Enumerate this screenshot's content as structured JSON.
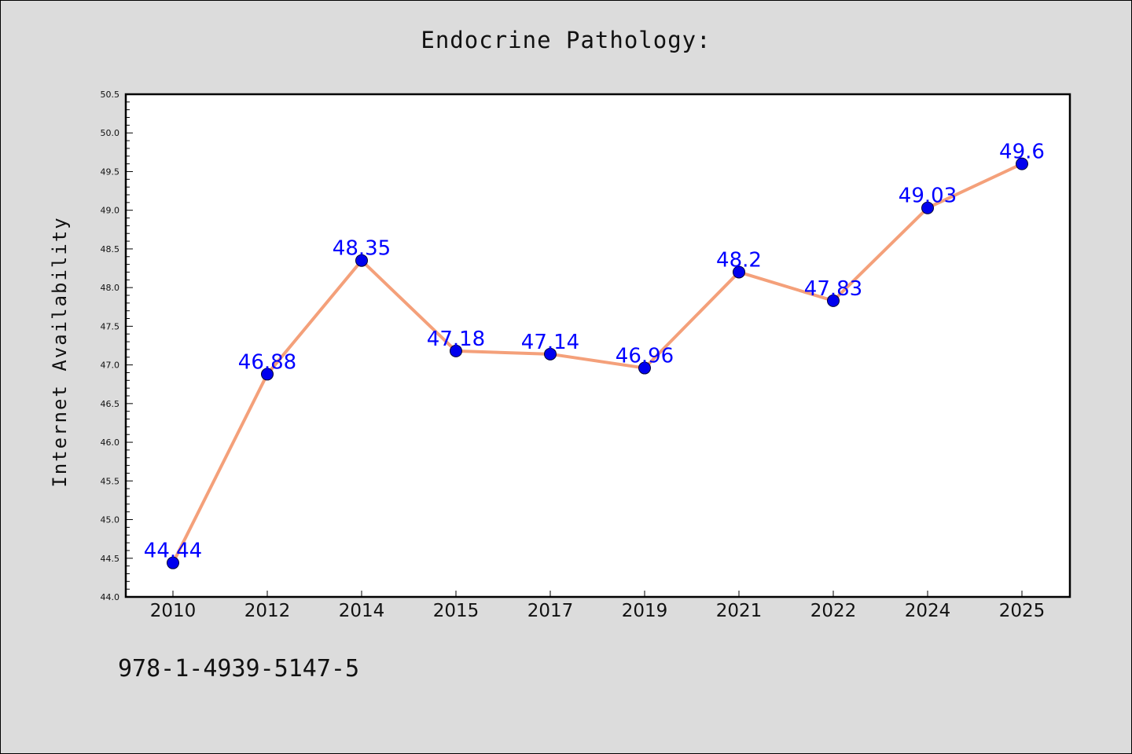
{
  "chart_data": {
    "type": "line",
    "title": "Endocrine Pathology:",
    "xlabel": "",
    "ylabel": "Internet Availability",
    "categories": [
      "2010",
      "2012",
      "2014",
      "2015",
      "2017",
      "2019",
      "2021",
      "2022",
      "2024",
      "2025"
    ],
    "series": [
      {
        "values": [
          44.44,
          46.88,
          48.35,
          47.18,
          47.14,
          46.96,
          48.2,
          47.83,
          49.03,
          49.6
        ],
        "data_labels": [
          "44.44",
          "46.88",
          "48.35",
          "47.18",
          "47.14",
          "46.96",
          "48.2",
          "47.83",
          "49.03",
          "49.6"
        ],
        "line_color": "#f4a07a",
        "marker_color": "#0000ee"
      }
    ],
    "ylim": [
      44.0,
      50.5
    ],
    "yticks": [
      "44.0",
      "44.5",
      "45.0",
      "45.5",
      "46.0",
      "46.5",
      "47.0",
      "47.5",
      "48.0",
      "48.5",
      "49.0",
      "49.5",
      "50.0",
      "50.5"
    ],
    "grid": false,
    "label_color": "#0000ff"
  },
  "footer": {
    "text": "978-1-4939-5147-5"
  }
}
